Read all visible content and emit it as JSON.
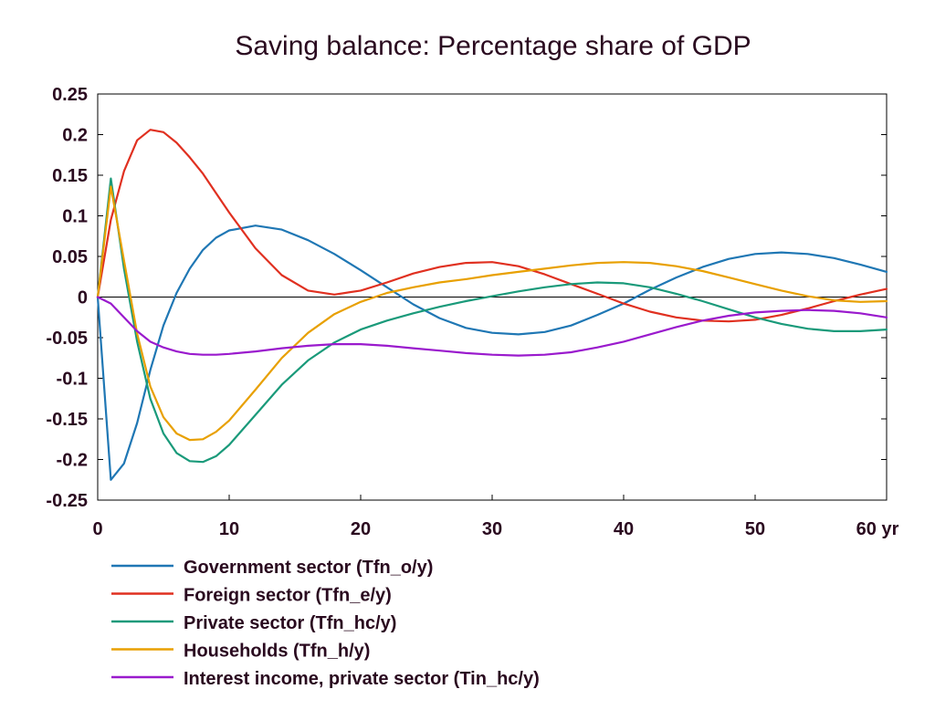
{
  "chart_data": {
    "type": "line",
    "title": "Saving balance: Percentage share of GDP",
    "xlabel": "",
    "ylabel": "",
    "xlim": [
      0,
      60
    ],
    "ylim": [
      -0.25,
      0.25
    ],
    "x_ticks": [
      0,
      10,
      20,
      30,
      40,
      50,
      60
    ],
    "x_tick_labels": [
      "0",
      "10",
      "20",
      "30",
      "40",
      "50",
      "60 yr"
    ],
    "y_ticks": [
      0.25,
      0.2,
      0.15,
      0.1,
      0.05,
      0,
      -0.05,
      -0.1,
      -0.15,
      -0.2,
      -0.25
    ],
    "y_tick_labels": [
      "0.25",
      "0.2",
      "0.15",
      "0.1",
      "0.05",
      "0",
      "-0.05",
      "-0.1",
      "-0.15",
      "-0.2",
      "-0.25"
    ],
    "grid": false,
    "zero_line": true,
    "legend_position": "bottom",
    "series": [
      {
        "name": "Government sector (Tfn_o/y)",
        "color": "#1f77b4",
        "x": [
          0,
          1,
          2,
          3,
          4,
          5,
          6,
          7,
          8,
          9,
          10,
          12,
          14,
          16,
          18,
          20,
          22,
          24,
          26,
          28,
          30,
          32,
          34,
          36,
          38,
          40,
          42,
          44,
          46,
          48,
          50,
          52,
          54,
          56,
          58,
          60
        ],
        "y": [
          0,
          -0.225,
          -0.205,
          -0.155,
          -0.09,
          -0.035,
          0.005,
          0.035,
          0.058,
          0.073,
          0.082,
          0.088,
          0.083,
          0.07,
          0.053,
          0.033,
          0.012,
          -0.009,
          -0.026,
          -0.038,
          -0.044,
          -0.046,
          -0.043,
          -0.035,
          -0.022,
          -0.008,
          0.009,
          0.024,
          0.037,
          0.047,
          0.053,
          0.055,
          0.053,
          0.048,
          0.04,
          0.031
        ]
      },
      {
        "name": "Foreign sector (Tfn_e/y)",
        "color": "#e03020",
        "x": [
          0,
          1,
          2,
          3,
          4,
          5,
          6,
          7,
          8,
          9,
          10,
          12,
          14,
          16,
          18,
          20,
          22,
          24,
          26,
          28,
          30,
          32,
          34,
          36,
          38,
          40,
          42,
          44,
          46,
          48,
          50,
          52,
          54,
          56,
          58,
          60
        ],
        "y": [
          0,
          0.095,
          0.155,
          0.193,
          0.206,
          0.203,
          0.19,
          0.172,
          0.152,
          0.128,
          0.104,
          0.06,
          0.027,
          0.008,
          0.003,
          0.008,
          0.018,
          0.029,
          0.037,
          0.042,
          0.043,
          0.038,
          0.028,
          0.016,
          0.004,
          -0.008,
          -0.018,
          -0.025,
          -0.029,
          -0.03,
          -0.028,
          -0.022,
          -0.014,
          -0.005,
          0.003,
          0.01
        ]
      },
      {
        "name": "Private sector (Tfn_hc/y)",
        "color": "#1a9a7a",
        "x": [
          0,
          1,
          2,
          3,
          4,
          5,
          6,
          7,
          8,
          9,
          10,
          12,
          14,
          16,
          18,
          20,
          22,
          24,
          26,
          28,
          30,
          32,
          34,
          36,
          38,
          40,
          42,
          44,
          46,
          48,
          50,
          52,
          54,
          56,
          58,
          60
        ],
        "y": [
          0,
          0.146,
          0.035,
          -0.055,
          -0.125,
          -0.168,
          -0.192,
          -0.202,
          -0.203,
          -0.196,
          -0.182,
          -0.145,
          -0.108,
          -0.078,
          -0.056,
          -0.04,
          -0.029,
          -0.02,
          -0.012,
          -0.005,
          0.001,
          0.007,
          0.012,
          0.016,
          0.018,
          0.017,
          0.012,
          0.004,
          -0.005,
          -0.015,
          -0.025,
          -0.033,
          -0.039,
          -0.042,
          -0.042,
          -0.04
        ]
      },
      {
        "name": "Households (Tfn_h/y)",
        "color": "#e8a000",
        "x": [
          0,
          1,
          2,
          3,
          4,
          5,
          6,
          7,
          8,
          9,
          10,
          12,
          14,
          16,
          18,
          20,
          22,
          24,
          26,
          28,
          30,
          32,
          34,
          36,
          38,
          40,
          42,
          44,
          46,
          48,
          50,
          52,
          54,
          56,
          58,
          60
        ],
        "y": [
          0,
          0.136,
          0.045,
          -0.045,
          -0.11,
          -0.148,
          -0.168,
          -0.176,
          -0.175,
          -0.166,
          -0.152,
          -0.114,
          -0.075,
          -0.044,
          -0.021,
          -0.006,
          0.005,
          0.012,
          0.018,
          0.022,
          0.027,
          0.031,
          0.035,
          0.039,
          0.042,
          0.043,
          0.042,
          0.038,
          0.032,
          0.024,
          0.016,
          0.008,
          0.001,
          -0.004,
          -0.006,
          -0.005
        ]
      },
      {
        "name": "Interest income, private sector (Tin_hc/y)",
        "color": "#9a1acd",
        "x": [
          0,
          1,
          2,
          3,
          4,
          5,
          6,
          7,
          8,
          9,
          10,
          12,
          14,
          16,
          18,
          20,
          22,
          24,
          26,
          28,
          30,
          32,
          34,
          36,
          38,
          40,
          42,
          44,
          46,
          48,
          50,
          52,
          54,
          56,
          58,
          60
        ],
        "y": [
          0,
          -0.008,
          -0.025,
          -0.042,
          -0.055,
          -0.062,
          -0.067,
          -0.07,
          -0.071,
          -0.071,
          -0.07,
          -0.067,
          -0.063,
          -0.06,
          -0.058,
          -0.058,
          -0.06,
          -0.063,
          -0.066,
          -0.069,
          -0.071,
          -0.072,
          -0.071,
          -0.068,
          -0.062,
          -0.055,
          -0.046,
          -0.037,
          -0.029,
          -0.023,
          -0.019,
          -0.017,
          -0.016,
          -0.017,
          -0.02,
          -0.025
        ]
      }
    ]
  }
}
